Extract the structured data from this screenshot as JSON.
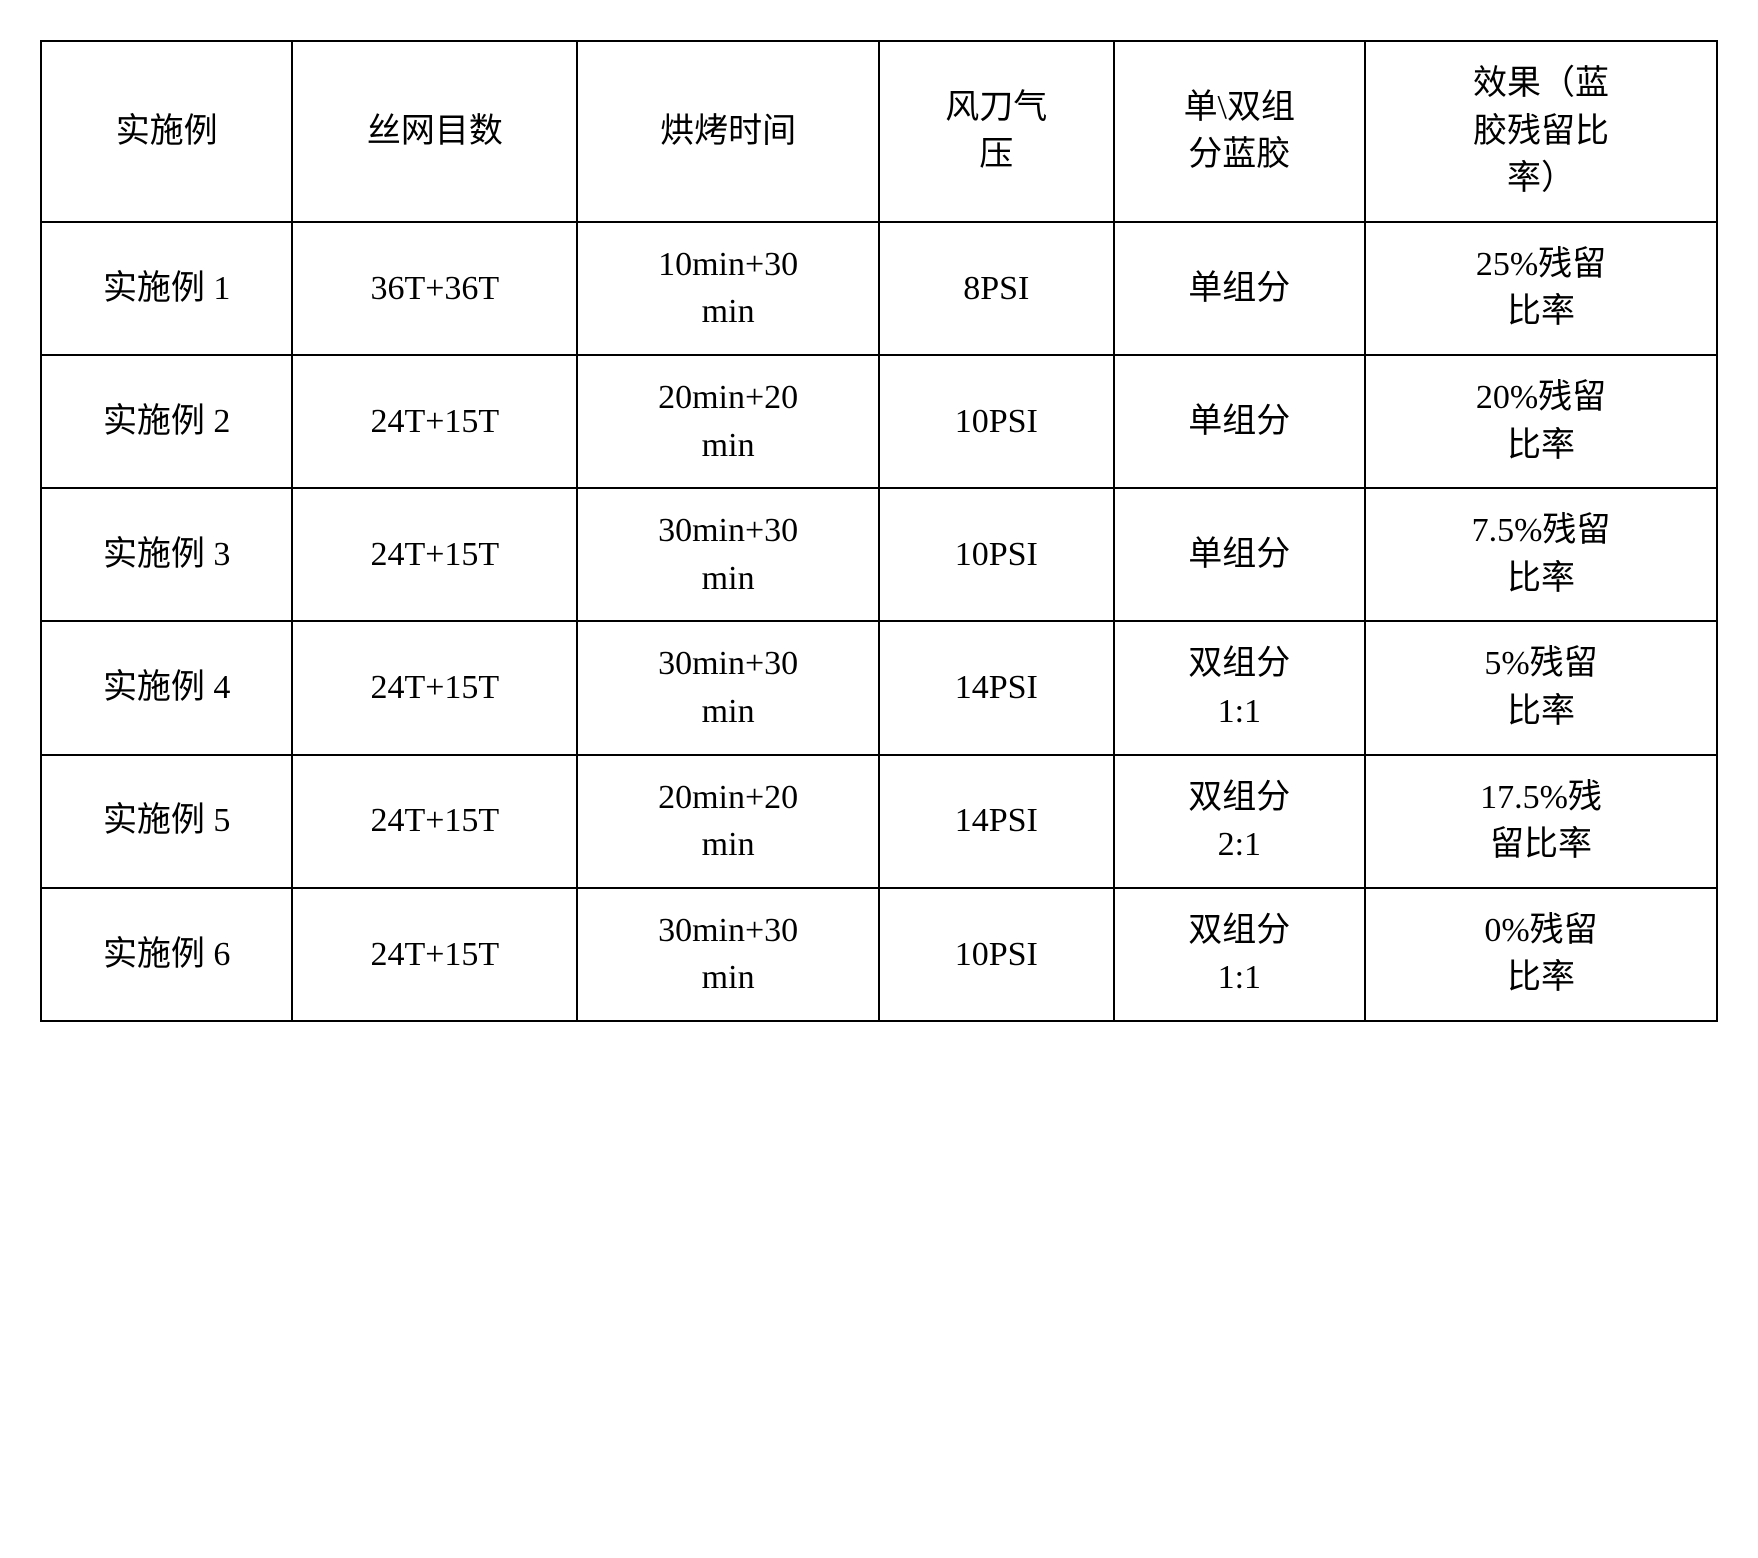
{
  "table": {
    "columns": [
      "实施例",
      "丝网目数",
      "烘烤时间",
      "风刀气\n压",
      "单\\双组\n分蓝胶",
      "效果（蓝\n胶残留比\n率）"
    ],
    "rows": [
      [
        "实施例 1",
        "36T+36T",
        "10min+30\nmin",
        "8PSI",
        "单组分",
        "25%残留\n比率"
      ],
      [
        "实施例 2",
        "24T+15T",
        "20min+20\nmin",
        "10PSI",
        "单组分",
        "20%残留\n比率"
      ],
      [
        "实施例 3",
        "24T+15T",
        "30min+30\nmin",
        "10PSI",
        "单组分",
        "7.5%残留\n比率"
      ],
      [
        "实施例 4",
        "24T+15T",
        "30min+30\nmin",
        "14PSI",
        "双组分\n1:1",
        "5%残留\n比率"
      ],
      [
        "实施例 5",
        "24T+15T",
        "20min+20\nmin",
        "14PSI",
        "双组分\n2:1",
        "17.5%残\n留比率"
      ],
      [
        "实施例 6",
        "24T+15T",
        "30min+30\nmin",
        "10PSI",
        "双组分\n1:1",
        "0%残留\n比率"
      ]
    ],
    "border_color": "#000000",
    "background_color": "#ffffff",
    "text_color": "#000000",
    "font_family": "SimSun",
    "font_size_pt": 26,
    "column_classes": [
      "col-0",
      "col-1",
      "col-2",
      "col-3",
      "col-4",
      "col-5"
    ]
  }
}
